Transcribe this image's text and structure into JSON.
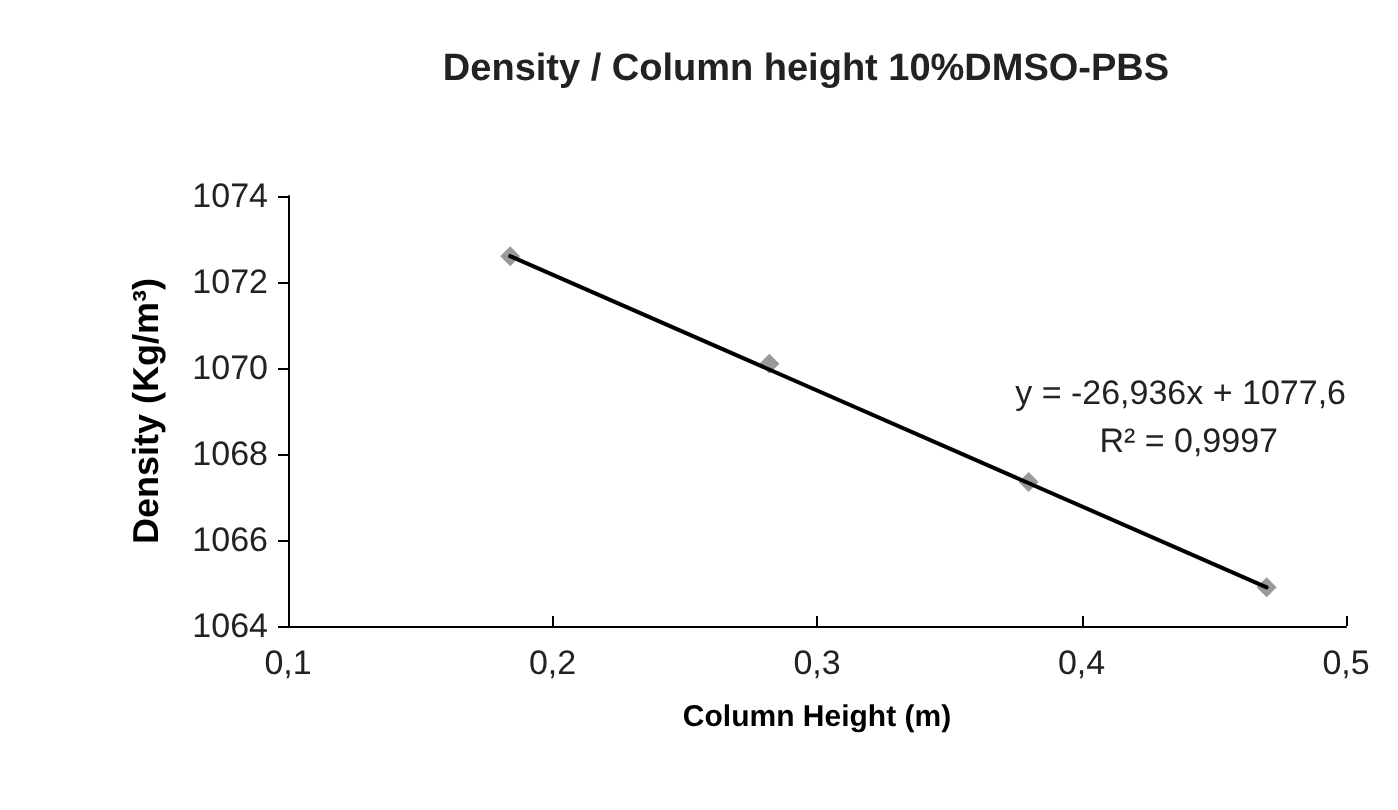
{
  "chart_data": {
    "type": "scatter",
    "title": "Density / Column height 10%DMSO-PBS",
    "xlabel": "Column Height (m)",
    "ylabel": "Density (Kg/m³)",
    "x": [
      0.184,
      0.282,
      0.38,
      0.47
    ],
    "series": [
      {
        "color": "#808080",
        "values": [
          1072.6,
          1070.1,
          1067.35,
          1064.9
        ],
        "marker": "diamond"
      },
      {
        "type": "line",
        "color": "#000000",
        "x": [
          0.184,
          0.47
        ],
        "values": [
          1072.6,
          1064.9
        ],
        "marker": "none",
        "line_style": "solid"
      }
    ],
    "xlim": [
      0.1,
      0.5
    ],
    "xticks": [
      {
        "value": 0.1,
        "label": "0,1"
      },
      {
        "value": 0.2,
        "label": "0,2"
      },
      {
        "value": 0.3,
        "label": "0,3"
      },
      {
        "value": 0.4,
        "label": "0,4"
      },
      {
        "value": 0.5,
        "label": "0,5"
      }
    ],
    "ylim": [
      1064,
      1074
    ],
    "yticks": [
      1064,
      1066,
      1068,
      1070,
      1072,
      1074
    ],
    "grid": false,
    "annotations": [
      "y = -26,936x + 1077,6",
      "R² = 0,9997"
    ]
  }
}
